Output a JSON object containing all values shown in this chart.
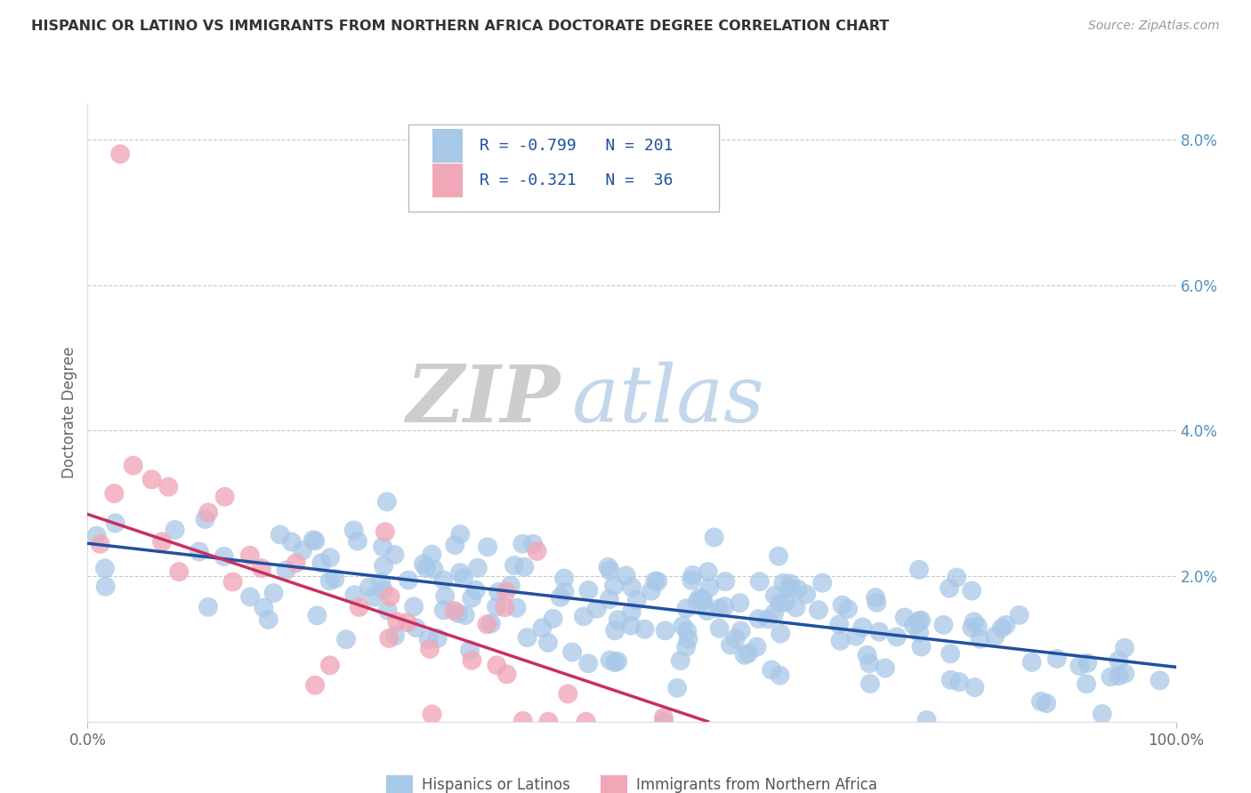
{
  "title": "HISPANIC OR LATINO VS IMMIGRANTS FROM NORTHERN AFRICA DOCTORATE DEGREE CORRELATION CHART",
  "source": "Source: ZipAtlas.com",
  "ylabel": "Doctorate Degree",
  "xlim": [
    0,
    100
  ],
  "ylim": [
    0,
    8.5
  ],
  "watermark_zip": "ZIP",
  "watermark_atlas": "atlas",
  "blue_R": -0.799,
  "blue_N": 201,
  "pink_R": -0.321,
  "pink_N": 36,
  "blue_color": "#a8c8e8",
  "pink_color": "#f0a8b8",
  "blue_line_color": "#2050a0",
  "pink_line_color": "#c83060",
  "legend_blue_label": "Hispanics or Latinos",
  "legend_pink_label": "Immigrants from Northern Africa",
  "blue_trend_x": [
    0,
    100
  ],
  "blue_trend_y": [
    2.45,
    0.75
  ],
  "pink_trend_x": [
    0,
    57
  ],
  "pink_trend_y": [
    2.85,
    0.0
  ],
  "background_color": "#ffffff",
  "grid_color": "#c8c8c8",
  "title_color": "#333333",
  "ytick_color": "#5090c0",
  "seed": 42
}
